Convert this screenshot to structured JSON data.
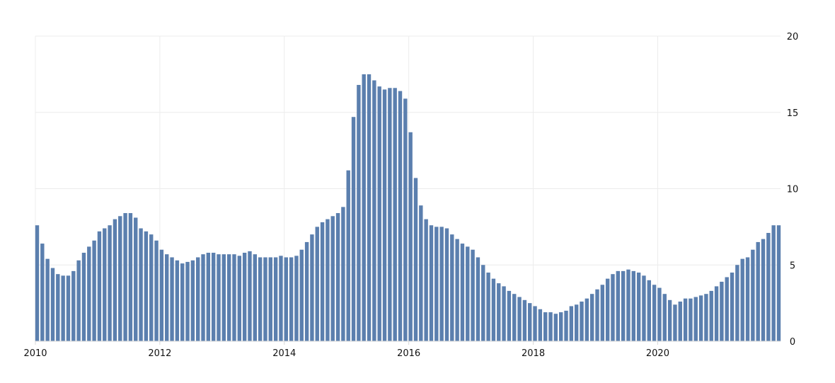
{
  "chart_data": {
    "type": "bar",
    "color": "#5b7fae",
    "grid": true,
    "legend": "none",
    "x_start": "2010-01",
    "x_end": "2021-08",
    "x_ticks": [
      "2010",
      "2012",
      "2014",
      "2016",
      "2018",
      "2020"
    ],
    "y_ticks": [
      "0",
      "5",
      "10",
      "15",
      "20"
    ],
    "ylim": [
      0,
      20
    ],
    "y_axis_side": "right",
    "values": [
      7.6,
      6.4,
      5.4,
      4.8,
      4.4,
      4.3,
      4.3,
      4.6,
      5.3,
      5.8,
      6.2,
      6.6,
      7.2,
      7.4,
      7.6,
      8.0,
      8.2,
      8.4,
      8.4,
      8.1,
      7.4,
      7.2,
      7.0,
      6.6,
      6.0,
      5.7,
      5.5,
      5.3,
      5.1,
      5.2,
      5.3,
      5.5,
      5.7,
      5.8,
      5.8,
      5.7,
      5.7,
      5.7,
      5.7,
      5.6,
      5.8,
      5.9,
      5.7,
      5.5,
      5.5,
      5.5,
      5.5,
      5.6,
      5.5,
      5.5,
      5.6,
      6.0,
      6.5,
      7.0,
      7.5,
      7.8,
      8.0,
      8.2,
      8.4,
      8.8,
      11.2,
      14.7,
      16.8,
      17.5,
      17.5,
      17.1,
      16.7,
      16.5,
      16.6,
      16.6,
      16.4,
      15.9,
      13.7,
      10.7,
      8.9,
      8.0,
      7.6,
      7.5,
      7.5,
      7.4,
      7.0,
      6.7,
      6.4,
      6.2,
      6.0,
      5.5,
      5.0,
      4.5,
      4.1,
      3.8,
      3.6,
      3.3,
      3.1,
      2.9,
      2.7,
      2.5,
      2.3,
      2.1,
      1.9,
      1.9,
      1.8,
      1.9,
      2.0,
      2.3,
      2.4,
      2.6,
      2.8,
      3.1,
      3.4,
      3.7,
      4.1,
      4.4,
      4.6,
      4.6,
      4.7,
      4.6,
      4.5,
      4.3,
      4.0,
      3.7,
      3.5,
      3.1,
      2.7,
      2.4,
      2.6,
      2.8,
      2.8,
      2.9,
      3.0,
      3.1,
      3.3,
      3.6,
      3.9,
      4.2,
      4.5,
      5.0,
      5.4,
      5.5,
      6.0,
      6.5,
      6.7,
      7.1,
      7.6,
      7.6
    ]
  }
}
